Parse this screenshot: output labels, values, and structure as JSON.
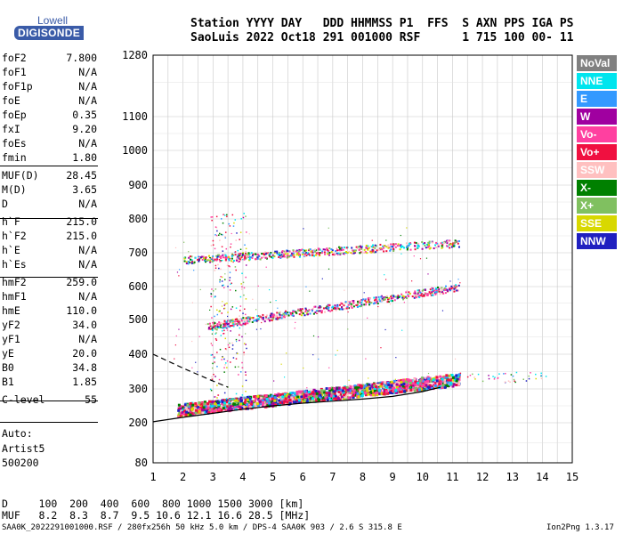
{
  "logo": {
    "top": "Lowell",
    "bottom": "DIGISONDE"
  },
  "header": {
    "line1": "Station YYYY DAY   DDD HHMMSS P1  FFS  S AXN PPS IGA PS",
    "line2": "SaoLuis 2022 Oct18 291 001000 RSF      1 715 100 00- 11"
  },
  "params": [
    {
      "label": "foF2",
      "value": "7.800"
    },
    {
      "label": "foF1",
      "value": "N/A"
    },
    {
      "label": "foF1p",
      "value": "N/A"
    },
    {
      "label": "foE",
      "value": "N/A"
    },
    {
      "label": "foEp",
      "value": "0.35"
    },
    {
      "label": "fxI",
      "value": "9.20"
    },
    {
      "label": "foEs",
      "value": "N/A"
    },
    {
      "label": "fmin",
      "value": "1.80"
    },
    {
      "label": "MUF(D)",
      "value": "28.45"
    },
    {
      "label": "M(D)",
      "value": "3.65"
    },
    {
      "label": "D",
      "value": "N/A"
    },
    {
      "label": "h`F",
      "value": "215.0"
    },
    {
      "label": "h`F2",
      "value": "215.0"
    },
    {
      "label": "h`E",
      "value": "N/A"
    },
    {
      "label": "h`Es",
      "value": "N/A"
    },
    {
      "label": "hmF2",
      "value": "259.0"
    },
    {
      "label": "hmF1",
      "value": "N/A"
    },
    {
      "label": "hmE",
      "value": "110.0"
    },
    {
      "label": "yF2",
      "value": "34.0"
    },
    {
      "label": "yF1",
      "value": "N/A"
    },
    {
      "label": "yE",
      "value": "20.0"
    },
    {
      "label": "B0",
      "value": "34.8"
    },
    {
      "label": "B1",
      "value": "1.85"
    },
    {
      "label": "C-level",
      "value": "55"
    }
  ],
  "auto": {
    "line1": "Auto:",
    "line2": "Artist5",
    "line3": "500200"
  },
  "legend": [
    {
      "label": "NoVal",
      "bg": "#808080",
      "fg": "#ffffff"
    },
    {
      "label": "NNE",
      "bg": "#00e5ee",
      "fg": "#ffffff"
    },
    {
      "label": "E",
      "bg": "#3399ff",
      "fg": "#ffffff"
    },
    {
      "label": "W",
      "bg": "#a000a0",
      "fg": "#ffffff"
    },
    {
      "label": "Vo-",
      "bg": "#ff40a0",
      "fg": "#ffffff"
    },
    {
      "label": "Vo+",
      "bg": "#f01040",
      "fg": "#ffffff"
    },
    {
      "label": "SSW",
      "bg": "#ffc0c0",
      "fg": "#ffffff"
    },
    {
      "label": "X-",
      "bg": "#008000",
      "fg": "#ffffff"
    },
    {
      "label": "X+",
      "bg": "#80c060",
      "fg": "#ffffff"
    },
    {
      "label": "SSE",
      "bg": "#d8d800",
      "fg": "#ffffff"
    },
    {
      "label": "NNW",
      "bg": "#2020c0",
      "fg": "#ffffff"
    }
  ],
  "footer": {
    "line1": "D     100  200  400  600  800 1000 1500 3000 [km]",
    "line2": "MUF   8.2  8.3  8.7  9.5 10.6 12.1 16.6 28.5 [MHz]"
  },
  "info": "SAA0K_2022291001000.RSF / 280fx256h 50 kHz 5.0 km / DPS-4 SAA0K 903 / 2.6 S 315.8 E",
  "version": "Ion2Png 1.3.17",
  "chart_data": {
    "type": "scatter",
    "title": "",
    "xlabel": "",
    "ylabel": "",
    "xlim": [
      1,
      15
    ],
    "ylim": [
      80,
      1280
    ],
    "y_scale": "pseudo-log",
    "x_ticks": [
      "1",
      "2",
      "3",
      "4",
      "5",
      "6",
      "7",
      "8",
      "9",
      "10",
      "11",
      "12",
      "13",
      "14",
      "15"
    ],
    "y_ticks": [
      "80",
      "200",
      "300",
      "400",
      "500",
      "600",
      "700",
      "800",
      "900",
      "1000",
      "1100",
      "1280"
    ],
    "traces": [
      {
        "name": "F trace",
        "freq_range": [
          1.8,
          11.2
        ],
        "height_range": [
          240,
          330
        ]
      },
      {
        "name": "second hop",
        "freq_range": [
          2.8,
          11.2
        ],
        "height_range": [
          480,
          600
        ]
      },
      {
        "name": "third hop",
        "freq_range": [
          2.0,
          11.2
        ],
        "height_range": [
          680,
          730
        ]
      }
    ],
    "curves": [
      {
        "name": "virtual height profile",
        "style": "solid",
        "points": [
          [
            1,
            203
          ],
          [
            2,
            216
          ],
          [
            3,
            228
          ],
          [
            4,
            240
          ],
          [
            5,
            250
          ],
          [
            6,
            258
          ],
          [
            7,
            264
          ],
          [
            8,
            270
          ],
          [
            9,
            278
          ],
          [
            10,
            292
          ],
          [
            10.6,
            305
          ]
        ]
      },
      {
        "name": "dashed profile",
        "style": "dashed",
        "points": [
          [
            1,
            400
          ],
          [
            2,
            360
          ],
          [
            2.8,
            330
          ],
          [
            3.5,
            305
          ]
        ]
      }
    ]
  }
}
